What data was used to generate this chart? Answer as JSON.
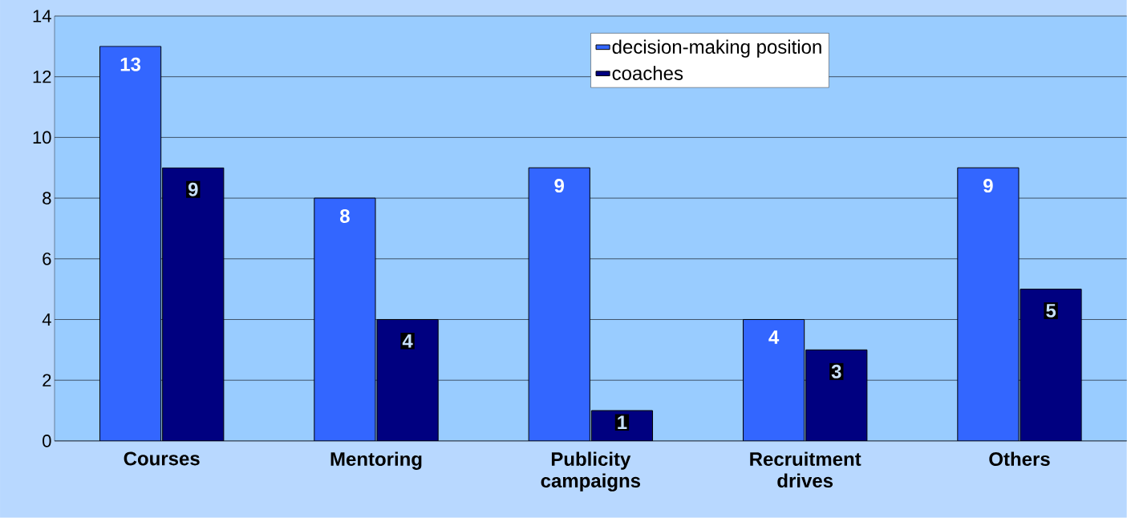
{
  "chart_data": {
    "type": "bar",
    "categories": [
      "Courses",
      "Mentoring",
      "Publicity campaigns",
      "Recruitment drives",
      "Others"
    ],
    "series": [
      {
        "name": "decision-making position",
        "color": "#3366ff",
        "values": [
          13,
          8,
          9,
          4,
          9
        ]
      },
      {
        "name": "coaches",
        "color": "#000080",
        "values": [
          9,
          4,
          1,
          3,
          5
        ]
      }
    ],
    "ylim": [
      0,
      14
    ],
    "yticks": [
      0,
      2,
      4,
      6,
      8,
      10,
      12,
      14
    ],
    "grid": "y",
    "legend": "top right",
    "data_labels": true
  }
}
